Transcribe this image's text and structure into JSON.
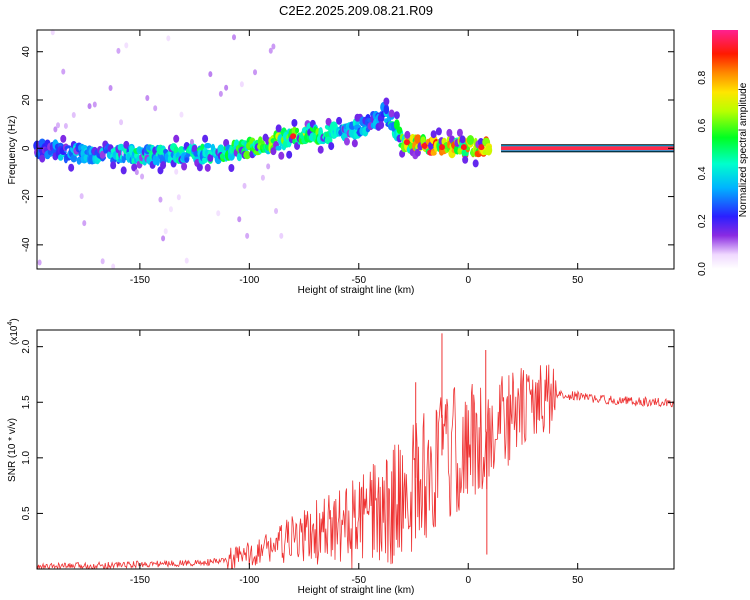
{
  "page_title": "C2E2.2025.209.08.21.R09",
  "colors": {
    "snr_line": "#ee3333",
    "speed_band": "#ff2b4a",
    "background": "#ffffff"
  },
  "chart_data": [
    {
      "type": "heatmap",
      "title": "C2E2.2025.209.08.21.R09",
      "xlabel": "Height of straight line (km)",
      "ylabel": "Frequency (Hz)",
      "xlim": [
        -197,
        94
      ],
      "ylim": [
        -50,
        49
      ],
      "xticks": [
        -150,
        -100,
        -50,
        0,
        50
      ],
      "yticks": [
        -40,
        -20,
        0,
        20,
        40
      ],
      "colorbar": {
        "label": "Normalized spectral amplitude",
        "range": [
          0,
          1
        ],
        "ticks": [
          0.0,
          0.2,
          0.4,
          0.6,
          0.8
        ],
        "tick_labels": [
          "0.0",
          "0.2",
          "0.4",
          "0.6",
          "0.8"
        ],
        "colormap": "rainbow (white to purple to blue to cyan to green to yellow to red to magenta)"
      },
      "signal_track": [
        {
          "x": -195,
          "freq": 0.0,
          "amp": 0.25
        },
        {
          "x": -180,
          "freq": -2.5,
          "amp": 0.4
        },
        {
          "x": -165,
          "freq": -2.0,
          "amp": 0.35
        },
        {
          "x": -150,
          "freq": -2.5,
          "amp": 0.45
        },
        {
          "x": -135,
          "freq": -2.5,
          "amp": 0.4
        },
        {
          "x": -120,
          "freq": -2.0,
          "amp": 0.45
        },
        {
          "x": -105,
          "freq": -1.0,
          "amp": 0.5
        },
        {
          "x": -95,
          "freq": 1.0,
          "amp": 0.55
        },
        {
          "x": -85,
          "freq": 3.5,
          "amp": 0.6
        },
        {
          "x": -75,
          "freq": 5.5,
          "amp": 0.65
        },
        {
          "x": -65,
          "freq": 6.0,
          "amp": 0.45
        },
        {
          "x": -55,
          "freq": 7.0,
          "amp": 0.4
        },
        {
          "x": -45,
          "freq": 10.0,
          "amp": 0.35
        },
        {
          "x": -38,
          "freq": 15.0,
          "amp": 0.3
        },
        {
          "x": -30,
          "freq": 3.0,
          "amp": 0.6
        },
        {
          "x": -20,
          "freq": 1.0,
          "amp": 0.8
        },
        {
          "x": -10,
          "freq": 0.5,
          "amp": 0.75
        },
        {
          "x": 0,
          "freq": 0.5,
          "amp": 0.75
        },
        {
          "x": 10,
          "freq": 0.5,
          "amp": 0.8
        }
      ],
      "constant_band": {
        "x_start": 15,
        "x_end": 94,
        "freq": 0.0,
        "amp": 0.98
      }
    },
    {
      "type": "line",
      "xlabel": "Height of straight line (km)",
      "ylabel": "SNR (10 * v/v)",
      "y_multiplier_label": "(x10",
      "y_multiplier_exponent": "4",
      "y_multiplier_close": ")",
      "xlim": [
        -197,
        94
      ],
      "ylim": [
        0,
        2.15
      ],
      "xticks": [
        -150,
        -100,
        -50,
        0,
        50
      ],
      "yticks": [
        0.5,
        1.0,
        1.5,
        2.0
      ],
      "ytick_labels": [
        "0.5",
        "1.0",
        "1.5",
        "2.0"
      ],
      "series": [
        {
          "x": [
            -197,
            -180,
            -160,
            -140,
            -120,
            -110,
            -100,
            -90,
            -80,
            -70,
            -60,
            -50,
            -40,
            -35,
            -30,
            -25,
            -20,
            -15,
            -10,
            -5,
            0,
            5,
            10,
            15,
            20,
            25,
            30,
            35,
            40,
            50,
            60,
            70,
            80,
            94
          ],
          "y": [
            0.02,
            0.03,
            0.04,
            0.05,
            0.06,
            0.08,
            0.14,
            0.22,
            0.28,
            0.35,
            0.4,
            0.46,
            0.55,
            0.62,
            0.7,
            0.8,
            0.9,
            0.98,
            1.05,
            1.12,
            1.18,
            1.2,
            1.25,
            1.35,
            1.42,
            1.48,
            1.52,
            1.55,
            1.57,
            1.56,
            1.53,
            1.52,
            1.51,
            1.5
          ],
          "spikes": [
            {
              "x": -24,
              "y": 1.68
            },
            {
              "x": -12,
              "y": 2.12
            },
            {
              "x": 8,
              "y": 1.97
            },
            {
              "x": 8.5,
              "y": 0.13
            }
          ]
        }
      ]
    }
  ]
}
